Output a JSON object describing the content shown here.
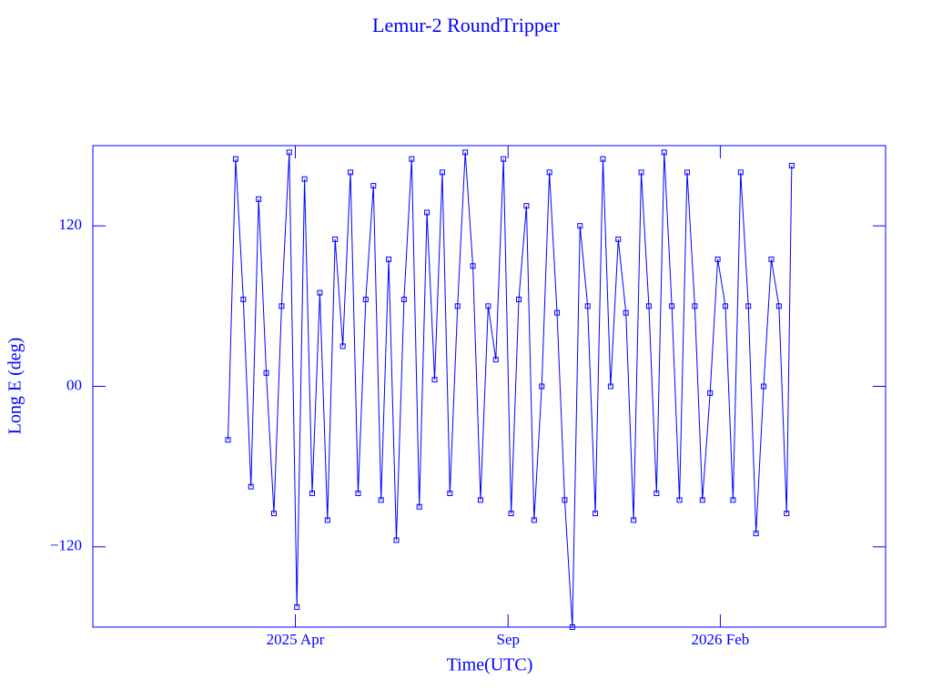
{
  "chart_data": {
    "type": "line",
    "title": "Lemur-2 RoundTripper",
    "x_label": "Time(UTC)",
    "y_label": "Long E (deg)",
    "color": "#0000ff",
    "marker": "square",
    "xlim": [
      2024.853,
      2026.407
    ],
    "xticks": [
      {
        "value": 2025.25,
        "label": "2025 Apr"
      },
      {
        "value": 2025.667,
        "label": "Sep"
      },
      {
        "value": 2026.083,
        "label": "2026 Feb"
      }
    ],
    "ylim": [
      -180,
      180
    ],
    "yticks": [
      {
        "value": -120,
        "label": "−120"
      },
      {
        "value": 0,
        "label": "00"
      },
      120
    ],
    "x": [
      2025.118,
      2025.133,
      2025.148,
      2025.163,
      2025.178,
      2025.193,
      2025.208,
      2025.223,
      2025.238,
      2025.253,
      2025.268,
      2025.283,
      2025.298,
      2025.313,
      2025.328,
      2025.343,
      2025.358,
      2025.373,
      2025.388,
      2025.403,
      2025.418,
      2025.433,
      2025.448,
      2025.463,
      2025.478,
      2025.493,
      2025.508,
      2025.523,
      2025.538,
      2025.553,
      2025.568,
      2025.583,
      2025.598,
      2025.613,
      2025.628,
      2025.643,
      2025.658,
      2025.673,
      2025.688,
      2025.703,
      2025.718,
      2025.733,
      2025.748,
      2025.763,
      2025.778,
      2025.793,
      2025.808,
      2025.823,
      2025.838,
      2025.853,
      2025.868,
      2025.883,
      2025.898,
      2025.913,
      2025.928,
      2025.943,
      2025.958,
      2025.973,
      2025.988,
      2026.003,
      2026.018,
      2026.033,
      2026.048,
      2026.063,
      2026.078,
      2026.093,
      2026.108,
      2026.123,
      2026.138,
      2026.153,
      2026.168,
      2026.183,
      2026.198,
      2026.213,
      2026.223
    ],
    "values": [
      -40,
      170,
      65,
      -75,
      140,
      10,
      -95,
      60,
      175,
      -165,
      155,
      -80,
      70,
      -100,
      110,
      30,
      160,
      -80,
      65,
      150,
      -85,
      95,
      -115,
      65,
      170,
      -90,
      130,
      5,
      160,
      -80,
      60,
      175,
      90,
      -85,
      60,
      20,
      170,
      -95,
      65,
      135,
      -100,
      0,
      160,
      55,
      -85,
      -180,
      120,
      60,
      -95,
      170,
      0,
      110,
      55,
      -100,
      160,
      60,
      -80,
      175,
      60,
      -85,
      160,
      60,
      -85,
      -5,
      95,
      60,
      -85,
      160,
      60,
      -110,
      0,
      95,
      60,
      -95,
      165
    ]
  }
}
